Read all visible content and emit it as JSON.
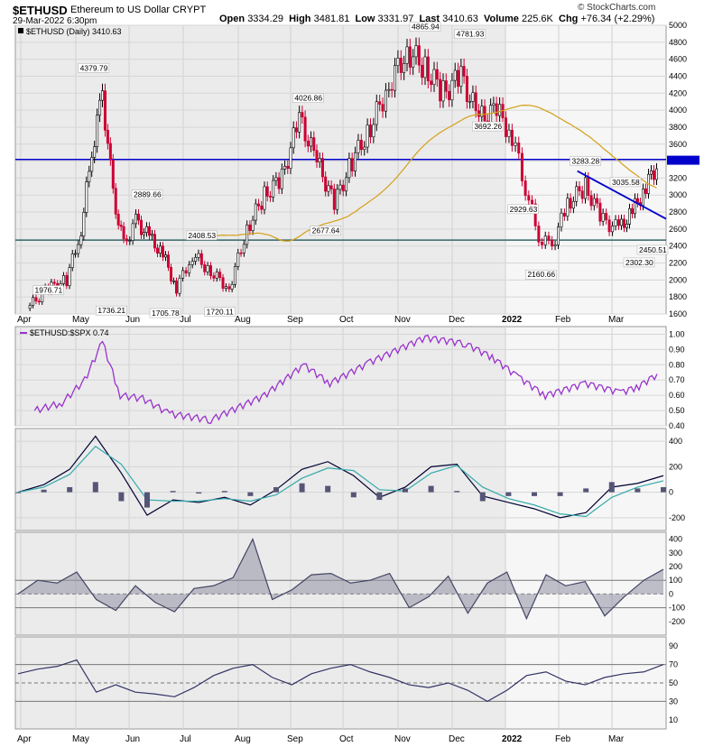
{
  "header": {
    "symbol": "$ETHUSD",
    "description": "Ethereum to US Dollar  CRYPT",
    "datetime": "29-Mar-2022 6:30pm",
    "open_label": "Open",
    "open": "3334.29",
    "high_label": "High",
    "high": "3481.81",
    "low_label": "Low",
    "low": "3331.97",
    "last_label": "Last",
    "last": "3410.63",
    "volume_label": "Volume",
    "volume": "225.6K",
    "chg_label": "Chg",
    "chg": "+76.34 (+2.29%)",
    "brand": "© StockCharts.com"
  },
  "chart_data": [
    {
      "type": "candlestick",
      "legend": "$ETHUSD (Daily) 3410.63",
      "ylim": [
        1600,
        5000
      ],
      "yticks": [
        1600,
        1800,
        2000,
        2200,
        2400,
        2600,
        2800,
        3000,
        3200,
        3400,
        3600,
        3800,
        4000,
        4200,
        4400,
        4600,
        4800,
        5000
      ],
      "x_tick_labels": [
        "Apr",
        "May",
        "Jun",
        "Jul",
        "Aug",
        "Sep",
        "Oct",
        "Nov",
        "Dec",
        "2022",
        "Feb",
        "Mar"
      ],
      "price_path": [
        {
          "x": "Apr",
          "value": 1700
        },
        {
          "x": "Apr",
          "value": 1900
        },
        {
          "x": "Apr",
          "value": 2000
        },
        {
          "x": "May",
          "value": 2600
        },
        {
          "x": "May",
          "value": 3500
        },
        {
          "x": "May",
          "value": 4200
        },
        {
          "x": "May",
          "value": 3000
        },
        {
          "x": "May",
          "value": 2400
        },
        {
          "x": "Jun",
          "value": 2700
        },
        {
          "x": "Jun",
          "value": 2500
        },
        {
          "x": "Jun",
          "value": 2300
        },
        {
          "x": "Jun",
          "value": 1900
        },
        {
          "x": "Jul",
          "value": 2300
        },
        {
          "x": "Jul",
          "value": 2100
        },
        {
          "x": "Jul",
          "value": 1900
        },
        {
          "x": "Aug",
          "value": 2600
        },
        {
          "x": "Aug",
          "value": 3000
        },
        {
          "x": "Aug",
          "value": 3200
        },
        {
          "x": "Sep",
          "value": 3900
        },
        {
          "x": "Sep",
          "value": 3400
        },
        {
          "x": "Sep",
          "value": 2900
        },
        {
          "x": "Oct",
          "value": 3400
        },
        {
          "x": "Oct",
          "value": 3800
        },
        {
          "x": "Oct",
          "value": 4300
        },
        {
          "x": "Nov",
          "value": 4700
        },
        {
          "x": "Nov",
          "value": 4500
        },
        {
          "x": "Nov",
          "value": 4200
        },
        {
          "x": "Dec",
          "value": 4400
        },
        {
          "x": "Dec",
          "value": 3900
        },
        {
          "x": "Dec",
          "value": 4000
        },
        {
          "x": "2022",
          "value": 3700
        },
        {
          "x": "2022",
          "value": 3100
        },
        {
          "x": "2022",
          "value": 2500
        },
        {
          "x": "2022",
          "value": 2400
        },
        {
          "x": "Feb",
          "value": 2900
        },
        {
          "x": "Feb",
          "value": 3100
        },
        {
          "x": "Feb",
          "value": 2700
        },
        {
          "x": "Mar",
          "value": 2600
        },
        {
          "x": "Mar",
          "value": 2800
        },
        {
          "x": "Mar",
          "value": 3100
        },
        {
          "x": "Mar",
          "value": 3410
        }
      ],
      "annotations": [
        {
          "label": "1976.71",
          "value": 1976.71,
          "x": "Apr"
        },
        {
          "label": "4379.79",
          "value": 4379.79,
          "x": "May"
        },
        {
          "label": "1736.21",
          "value": 1736.21,
          "x": "May"
        },
        {
          "label": "2889.66",
          "value": 2889.66,
          "x": "Jun"
        },
        {
          "label": "1705.78",
          "value": 1705.78,
          "x": "Jun"
        },
        {
          "label": "2408.53",
          "value": 2408.53,
          "x": "Jul"
        },
        {
          "label": "1720.11",
          "value": 1720.11,
          "x": "Jul"
        },
        {
          "label": "4026.86",
          "value": 4026.86,
          "x": "Sep"
        },
        {
          "label": "2677.64",
          "value": 2677.64,
          "x": "Sep"
        },
        {
          "label": "4865.94",
          "value": 4865.94,
          "x": "Nov"
        },
        {
          "label": "4781.93",
          "value": 4781.93,
          "x": "Dec"
        },
        {
          "label": "3692.26",
          "value": 3692.26,
          "x": "Dec"
        },
        {
          "label": "2929.63",
          "value": 2929.63,
          "x": "2022"
        },
        {
          "label": "2160.66",
          "value": 2160.66,
          "x": "2022"
        },
        {
          "label": "3283.28",
          "value": 3283.28,
          "x": "Feb"
        },
        {
          "label": "3035.58",
          "value": 3035.58,
          "x": "Mar"
        },
        {
          "label": "2302.30",
          "value": 2302.3,
          "x": "Mar"
        },
        {
          "label": "2450.51",
          "value": 2450.51,
          "x": "Mar"
        }
      ],
      "horizontal_lines": [
        {
          "value": 3420,
          "color": "#0000cc"
        },
        {
          "value": 2470,
          "color": "#336666"
        }
      ],
      "trendline": {
        "from": {
          "x": "Feb",
          "value": 3283.28
        },
        "to": {
          "x": "Mar",
          "value": 2720
        },
        "color": "#0000cc"
      },
      "moving_average": {
        "color": "#d4a017"
      },
      "colors": {
        "up": "#000000",
        "down": "#cc0033"
      }
    },
    {
      "type": "line",
      "legend": "$ETHUSD:$SPX 0.74",
      "ylim": [
        0.4,
        1.05
      ],
      "yticks": [
        0.4,
        0.5,
        0.6,
        0.7,
        0.8,
        0.9,
        1.0
      ],
      "color": "#9933cc",
      "points": [
        {
          "x": "Apr",
          "value": 0.5
        },
        {
          "x": "Apr",
          "value": 0.55
        },
        {
          "x": "May",
          "value": 0.7
        },
        {
          "x": "May",
          "value": 0.95
        },
        {
          "x": "May",
          "value": 0.6
        },
        {
          "x": "Jun",
          "value": 0.58
        },
        {
          "x": "Jun",
          "value": 0.48
        },
        {
          "x": "Jul",
          "value": 0.44
        },
        {
          "x": "Aug",
          "value": 0.6
        },
        {
          "x": "Sep",
          "value": 0.8
        },
        {
          "x": "Sep",
          "value": 0.68
        },
        {
          "x": "Oct",
          "value": 0.82
        },
        {
          "x": "Nov",
          "value": 0.98
        },
        {
          "x": "Dec",
          "value": 0.94
        },
        {
          "x": "Dec",
          "value": 0.85
        },
        {
          "x": "2022",
          "value": 0.72
        },
        {
          "x": "2022",
          "value": 0.6
        },
        {
          "x": "Feb",
          "value": 0.68
        },
        {
          "x": "Mar",
          "value": 0.62
        },
        {
          "x": "Mar",
          "value": 0.66
        },
        {
          "x": "Mar",
          "value": 0.74
        }
      ]
    },
    {
      "type": "line",
      "indicator": "macd",
      "ylim": [
        -300,
        500
      ],
      "yticks": [
        -200,
        0,
        200,
        400
      ],
      "series": [
        {
          "color": "#000033",
          "values": [
            0,
            60,
            180,
            440,
            150,
            -180,
            -60,
            -80,
            -40,
            -100,
            20,
            180,
            240,
            130,
            -40,
            40,
            200,
            220,
            -30,
            -80,
            -130,
            -200,
            -160,
            40,
            70,
            130
          ]
        },
        {
          "color": "#33aaaa",
          "values": [
            0,
            40,
            140,
            360,
            220,
            -60,
            -70,
            -70,
            -50,
            -70,
            -20,
            110,
            190,
            170,
            20,
            10,
            150,
            210,
            40,
            -50,
            -100,
            -170,
            -190,
            -40,
            40,
            90
          ]
        }
      ],
      "histogram_color": "#555577"
    },
    {
      "type": "area",
      "indicator": "cci",
      "ylim": [
        -300,
        450
      ],
      "yticks": [
        -200,
        -100,
        0,
        100,
        200,
        300,
        400
      ],
      "reference_lines": [
        100,
        0,
        -100
      ],
      "color": "#444466",
      "values": [
        0,
        100,
        80,
        160,
        -40,
        -120,
        60,
        -60,
        -130,
        40,
        60,
        120,
        400,
        -40,
        30,
        140,
        150,
        80,
        100,
        150,
        -100,
        -20,
        130,
        -140,
        80,
        160,
        -180,
        140,
        60,
        90,
        -160,
        -20,
        100,
        180
      ]
    },
    {
      "type": "line",
      "indicator": "rsi",
      "ylim": [
        0,
        100
      ],
      "yticks": [
        10,
        30,
        50,
        70,
        90
      ],
      "reference_lines": [
        70,
        50,
        30
      ],
      "color": "#333366",
      "values": [
        60,
        65,
        68,
        75,
        40,
        48,
        40,
        38,
        35,
        45,
        58,
        66,
        70,
        56,
        48,
        60,
        66,
        70,
        62,
        56,
        48,
        45,
        50,
        42,
        30,
        42,
        58,
        62,
        52,
        48,
        56,
        60,
        62,
        70
      ]
    }
  ]
}
